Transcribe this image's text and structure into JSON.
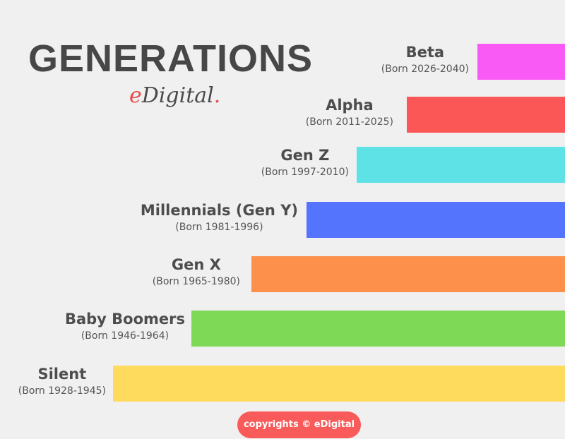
{
  "header": {
    "title": "GENERATIONS",
    "logo": "eDigital"
  },
  "generations": [
    {
      "name": "Beta",
      "born": "(Born 2026-2040)",
      "color": "#f95af5"
    },
    {
      "name": "Alpha",
      "born": "(Born 2011-2025)",
      "color": "#fb5757"
    },
    {
      "name": "Gen Z",
      "born": "(Born 1997-2010)",
      "color": "#5ee2e6"
    },
    {
      "name": "Millennials (Gen Y)",
      "born": "(Born 1981-1996)",
      "color": "#5474fd"
    },
    {
      "name": "Gen X",
      "born": "(Born 1965-1980)",
      "color": "#fd914c"
    },
    {
      "name": "Baby Boomers",
      "born": "(Born 1946-1964)",
      "color": "#7ed957"
    },
    {
      "name": "Silent",
      "born": "(Born 1928-1945)",
      "color": "#fedb5d"
    }
  ],
  "footer": {
    "copyright": "copyrights © eDigital"
  }
}
